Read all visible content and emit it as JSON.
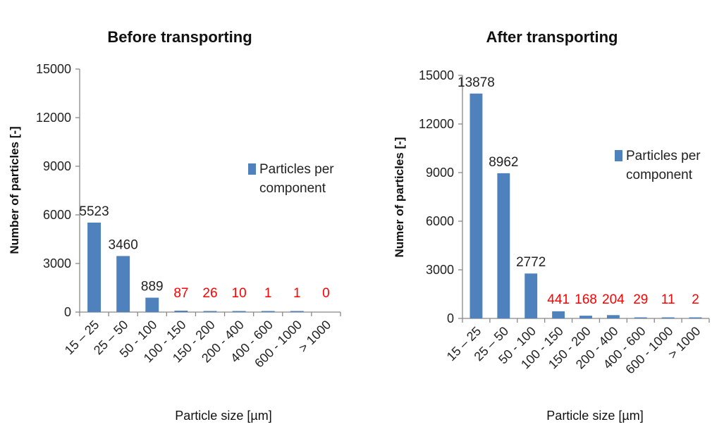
{
  "chart_data": [
    {
      "type": "bar",
      "title": "Before transporting",
      "xlabel": "Particle size [µm]",
      "ylabel": "Number of particles [-]",
      "ylim": [
        0,
        15000
      ],
      "yticks": [
        "0",
        "3000",
        "6000",
        "9000",
        "12000",
        "15000"
      ],
      "categories": [
        "15 – 25",
        "25 – 50",
        "50 - 100",
        "100 - 150",
        "150 - 200",
        "200 - 400",
        "400 - 600",
        "600 - 1000",
        "> 1000"
      ],
      "series": [
        {
          "name": "Particles per component",
          "color": "#4f81bd",
          "values": [
            5523,
            3460,
            889,
            87,
            26,
            10,
            1,
            1,
            0
          ],
          "labels": [
            "5523",
            "3460",
            "889",
            "87",
            "26",
            "10",
            "1",
            "1",
            "0"
          ]
        }
      ],
      "label_colors": [
        "#222222",
        "#222222",
        "#222222",
        "#ff0000",
        "#ff0000",
        "#ff0000",
        "#ff0000",
        "#ff0000",
        "#ff0000"
      ],
      "legend": {
        "position": "right",
        "lines": [
          "Particles per",
          "component"
        ]
      },
      "grid": false
    },
    {
      "type": "bar",
      "title": "After transporting",
      "xlabel": "Particle size [µm]",
      "ylabel": "Numer of particles [-]",
      "ylim": [
        0,
        15000
      ],
      "yticks": [
        "0",
        "3000",
        "6000",
        "9000",
        "12000",
        "15000"
      ],
      "categories": [
        "15 – 25",
        "25 – 50",
        "50 - 100",
        "100 - 150",
        "150 - 200",
        "200 - 400",
        "400 - 600",
        "600 - 1000",
        "> 1000"
      ],
      "series": [
        {
          "name": "Particles per component",
          "color": "#4f81bd",
          "values": [
            13878,
            8962,
            2772,
            441,
            168,
            204,
            29,
            11,
            2
          ],
          "labels": [
            "13878",
            "8962",
            "2772",
            "441",
            "168",
            "204",
            "29",
            "11",
            "2"
          ]
        }
      ],
      "label_colors": [
        "#222222",
        "#222222",
        "#222222",
        "#ff0000",
        "#ff0000",
        "#ff0000",
        "#ff0000",
        "#ff0000",
        "#ff0000"
      ],
      "legend": {
        "position": "right",
        "lines": [
          "Particles per",
          "component"
        ]
      },
      "grid": false
    }
  ]
}
